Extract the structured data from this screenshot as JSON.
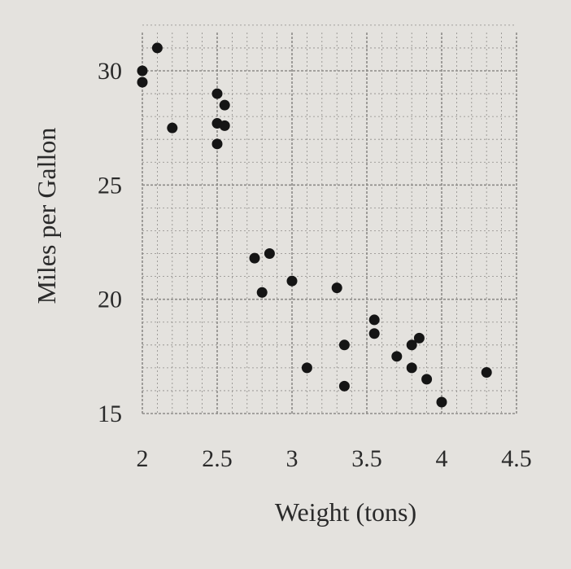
{
  "chart_data": {
    "type": "scatter",
    "title": "",
    "xlabel": "Weight (tons)",
    "ylabel": "Miles per Gallon",
    "xlim": [
      2,
      4.5
    ],
    "ylim": [
      15,
      32
    ],
    "x_ticks": [
      2,
      2.5,
      3,
      3.5,
      4,
      4.5
    ],
    "x_tick_labels": [
      "2",
      "2.5",
      "3",
      "3.5",
      "4",
      "4.5"
    ],
    "y_ticks": [
      15,
      20,
      25,
      30
    ],
    "y_tick_labels": [
      "15",
      "20",
      "25",
      "30"
    ],
    "grid": true,
    "legend": "none",
    "point_color": "#151515",
    "grid_color": "#8d8b88",
    "points": [
      {
        "x": 2.0,
        "y": 30.0
      },
      {
        "x": 2.0,
        "y": 29.5
      },
      {
        "x": 2.1,
        "y": 31.0
      },
      {
        "x": 2.2,
        "y": 27.5
      },
      {
        "x": 2.5,
        "y": 29.0
      },
      {
        "x": 2.55,
        "y": 28.5
      },
      {
        "x": 2.5,
        "y": 27.7
      },
      {
        "x": 2.55,
        "y": 27.6
      },
      {
        "x": 2.5,
        "y": 26.8
      },
      {
        "x": 2.75,
        "y": 21.8
      },
      {
        "x": 2.85,
        "y": 22.0
      },
      {
        "x": 2.8,
        "y": 20.3
      },
      {
        "x": 3.0,
        "y": 20.8
      },
      {
        "x": 3.3,
        "y": 20.5
      },
      {
        "x": 3.55,
        "y": 19.1
      },
      {
        "x": 3.55,
        "y": 18.5
      },
      {
        "x": 3.35,
        "y": 18.0
      },
      {
        "x": 3.1,
        "y": 17.0
      },
      {
        "x": 3.35,
        "y": 16.2
      },
      {
        "x": 3.7,
        "y": 17.5
      },
      {
        "x": 3.8,
        "y": 18.0
      },
      {
        "x": 3.85,
        "y": 18.3
      },
      {
        "x": 3.8,
        "y": 17.0
      },
      {
        "x": 3.9,
        "y": 16.5
      },
      {
        "x": 4.0,
        "y": 15.5
      },
      {
        "x": 4.3,
        "y": 16.8
      }
    ]
  }
}
